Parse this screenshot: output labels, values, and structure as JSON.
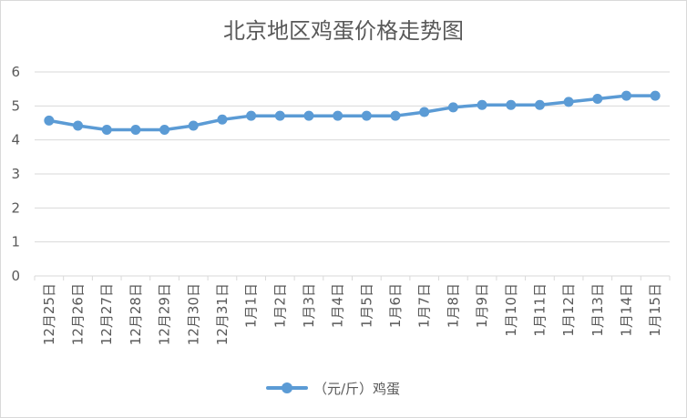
{
  "chart_data": {
    "type": "line",
    "title": "北京地区鸡蛋价格走势图",
    "xlabel": "",
    "ylabel": "",
    "ylim": [
      0,
      6
    ],
    "yticks": [
      0,
      1,
      2,
      3,
      4,
      5,
      6
    ],
    "grid": true,
    "legend_position": "bottom",
    "categories": [
      "12月25日",
      "12月26日",
      "12月27日",
      "12月28日",
      "12月29日",
      "12月30日",
      "12月31日",
      "1月1日",
      "1月2日",
      "1月3日",
      "1月4日",
      "1月5日",
      "1月6日",
      "1月7日",
      "1月8日",
      "1月9日",
      "1月10日",
      "1月11日",
      "1月12日",
      "1月13日",
      "1月14日",
      "1月15日"
    ],
    "series": [
      {
        "name": "（元/斤）鸡蛋",
        "color": "#5b9bd5",
        "values": [
          4.57,
          4.42,
          4.3,
          4.3,
          4.3,
          4.42,
          4.6,
          4.71,
          4.71,
          4.71,
          4.71,
          4.71,
          4.71,
          4.82,
          4.96,
          5.03,
          5.03,
          5.03,
          5.12,
          5.21,
          5.3,
          5.3
        ]
      }
    ]
  },
  "colors": {
    "line": "#5b9bd5",
    "grid": "#d9d9d9",
    "text": "#595959"
  }
}
